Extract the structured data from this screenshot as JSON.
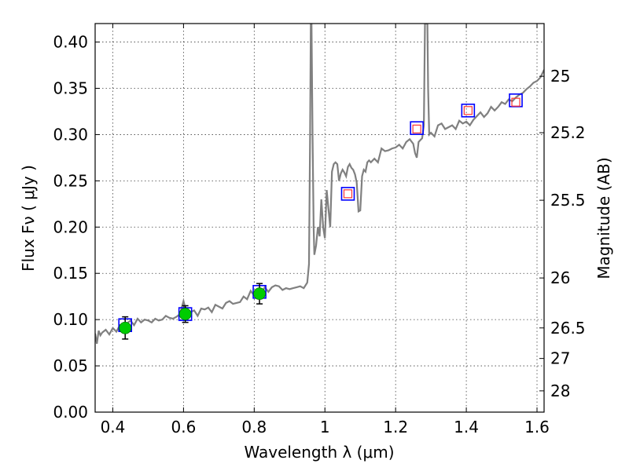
{
  "chart_data": {
    "type": "line",
    "xlabel": "Wavelength  λ (μm)",
    "ylabel": "Flux  Fν  ( μJy )",
    "y2label": "Magnitude (AB)",
    "xlim": [
      0.35,
      1.62
    ],
    "ylim": [
      0.0,
      0.42
    ],
    "x_ticks": [
      0.4,
      0.6,
      0.8,
      1.0,
      1.2,
      1.4,
      1.6
    ],
    "x_tick_labels": [
      "0.4",
      "0.6",
      "0.8",
      "1",
      "1.2",
      "1.4",
      "1.6"
    ],
    "y_ticks": [
      0.0,
      0.05,
      0.1,
      0.15,
      0.2,
      0.25,
      0.3,
      0.35,
      0.4
    ],
    "y_tick_labels": [
      "0.00",
      "0.05",
      "0.10",
      "0.15",
      "0.20",
      "0.25",
      "0.30",
      "0.35",
      "0.40"
    ],
    "y2_ticks": [
      {
        "label": "25",
        "flux": 0.363
      },
      {
        "label": "25.2",
        "flux": 0.302
      },
      {
        "label": "25.5",
        "flux": 0.229
      },
      {
        "label": "26",
        "flux": 0.145
      },
      {
        "label": "26.5",
        "flux": 0.091
      },
      {
        "label": "27",
        "flux": 0.058
      },
      {
        "label": "28",
        "flux": 0.023
      }
    ],
    "grid": true,
    "series": [
      {
        "kind": "spectrum",
        "color": "#808080",
        "x": [
          0.35,
          0.355,
          0.36,
          0.365,
          0.37,
          0.38,
          0.39,
          0.4,
          0.41,
          0.42,
          0.43,
          0.44,
          0.45,
          0.46,
          0.47,
          0.48,
          0.49,
          0.5,
          0.51,
          0.52,
          0.53,
          0.54,
          0.55,
          0.56,
          0.57,
          0.58,
          0.59,
          0.6,
          0.61,
          0.62,
          0.63,
          0.64,
          0.65,
          0.66,
          0.67,
          0.68,
          0.69,
          0.7,
          0.71,
          0.72,
          0.73,
          0.74,
          0.75,
          0.76,
          0.77,
          0.78,
          0.79,
          0.8,
          0.81,
          0.82,
          0.83,
          0.84,
          0.85,
          0.86,
          0.87,
          0.88,
          0.89,
          0.9,
          0.91,
          0.92,
          0.93,
          0.94,
          0.95,
          0.955,
          0.958,
          0.96,
          0.962,
          0.965,
          0.968,
          0.97,
          0.975,
          0.98,
          0.985,
          0.99,
          0.995,
          1.0,
          1.005,
          1.01,
          1.015,
          1.02,
          1.025,
          1.03,
          1.035,
          1.04,
          1.045,
          1.05,
          1.055,
          1.06,
          1.065,
          1.07,
          1.075,
          1.08,
          1.085,
          1.09,
          1.095,
          1.1,
          1.105,
          1.11,
          1.115,
          1.12,
          1.125,
          1.13,
          1.14,
          1.15,
          1.16,
          1.17,
          1.18,
          1.19,
          1.2,
          1.21,
          1.22,
          1.23,
          1.24,
          1.25,
          1.255,
          1.26,
          1.265,
          1.27,
          1.275,
          1.28,
          1.283,
          1.286,
          1.29,
          1.292,
          1.295,
          1.3,
          1.31,
          1.32,
          1.33,
          1.34,
          1.35,
          1.36,
          1.37,
          1.38,
          1.39,
          1.4,
          1.41,
          1.42,
          1.43,
          1.44,
          1.45,
          1.46,
          1.47,
          1.48,
          1.49,
          1.5,
          1.51,
          1.52,
          1.53,
          1.54,
          1.55,
          1.56,
          1.57,
          1.58,
          1.59,
          1.6,
          1.61,
          1.62
        ],
        "y": [
          0.085,
          0.074,
          0.088,
          0.083,
          0.086,
          0.089,
          0.084,
          0.091,
          0.087,
          0.094,
          0.092,
          0.096,
          0.099,
          0.094,
          0.101,
          0.097,
          0.1,
          0.099,
          0.097,
          0.101,
          0.099,
          0.1,
          0.104,
          0.102,
          0.101,
          0.103,
          0.106,
          0.12,
          0.105,
          0.108,
          0.11,
          0.104,
          0.112,
          0.111,
          0.113,
          0.108,
          0.116,
          0.114,
          0.112,
          0.118,
          0.12,
          0.117,
          0.118,
          0.119,
          0.125,
          0.122,
          0.131,
          0.126,
          0.133,
          0.128,
          0.135,
          0.13,
          0.135,
          0.137,
          0.136,
          0.132,
          0.134,
          0.133,
          0.134,
          0.135,
          0.136,
          0.134,
          0.14,
          0.16,
          0.3,
          0.42,
          0.42,
          0.3,
          0.2,
          0.17,
          0.18,
          0.2,
          0.19,
          0.23,
          0.2,
          0.188,
          0.24,
          0.22,
          0.2,
          0.26,
          0.268,
          0.27,
          0.268,
          0.25,
          0.258,
          0.262,
          0.259,
          0.255,
          0.265,
          0.268,
          0.264,
          0.262,
          0.257,
          0.248,
          0.217,
          0.218,
          0.255,
          0.262,
          0.26,
          0.27,
          0.272,
          0.27,
          0.274,
          0.27,
          0.285,
          0.282,
          0.283,
          0.285,
          0.286,
          0.289,
          0.285,
          0.292,
          0.295,
          0.29,
          0.28,
          0.275,
          0.292,
          0.294,
          0.296,
          0.31,
          0.42,
          0.42,
          0.42,
          0.35,
          0.3,
          0.302,
          0.298,
          0.31,
          0.312,
          0.306,
          0.308,
          0.31,
          0.306,
          0.315,
          0.312,
          0.314,
          0.31,
          0.316,
          0.32,
          0.324,
          0.319,
          0.323,
          0.33,
          0.326,
          0.33,
          0.335,
          0.333,
          0.338,
          0.336,
          0.34,
          0.343,
          0.345,
          0.349,
          0.352,
          0.356,
          0.358,
          0.362,
          0.37
        ]
      },
      {
        "kind": "observed-with-error",
        "color": "#00cc00",
        "x": [
          0.435,
          0.605,
          0.815
        ],
        "y": [
          0.091,
          0.106,
          0.128
        ],
        "yerr": [
          0.012,
          0.009,
          0.011
        ]
      },
      {
        "kind": "model-blue-squares",
        "color": "#0000ff",
        "x": [
          0.435,
          0.605,
          0.815,
          1.065,
          1.26,
          1.405,
          1.54
        ],
        "y": [
          0.094,
          0.106,
          0.13,
          0.236,
          0.307,
          0.326,
          0.337
        ]
      },
      {
        "kind": "model-red-squares",
        "color": "#ff3333",
        "x": [
          1.065,
          1.26,
          1.405,
          1.54
        ],
        "y": [
          0.236,
          0.306,
          0.326,
          0.335
        ]
      }
    ]
  }
}
